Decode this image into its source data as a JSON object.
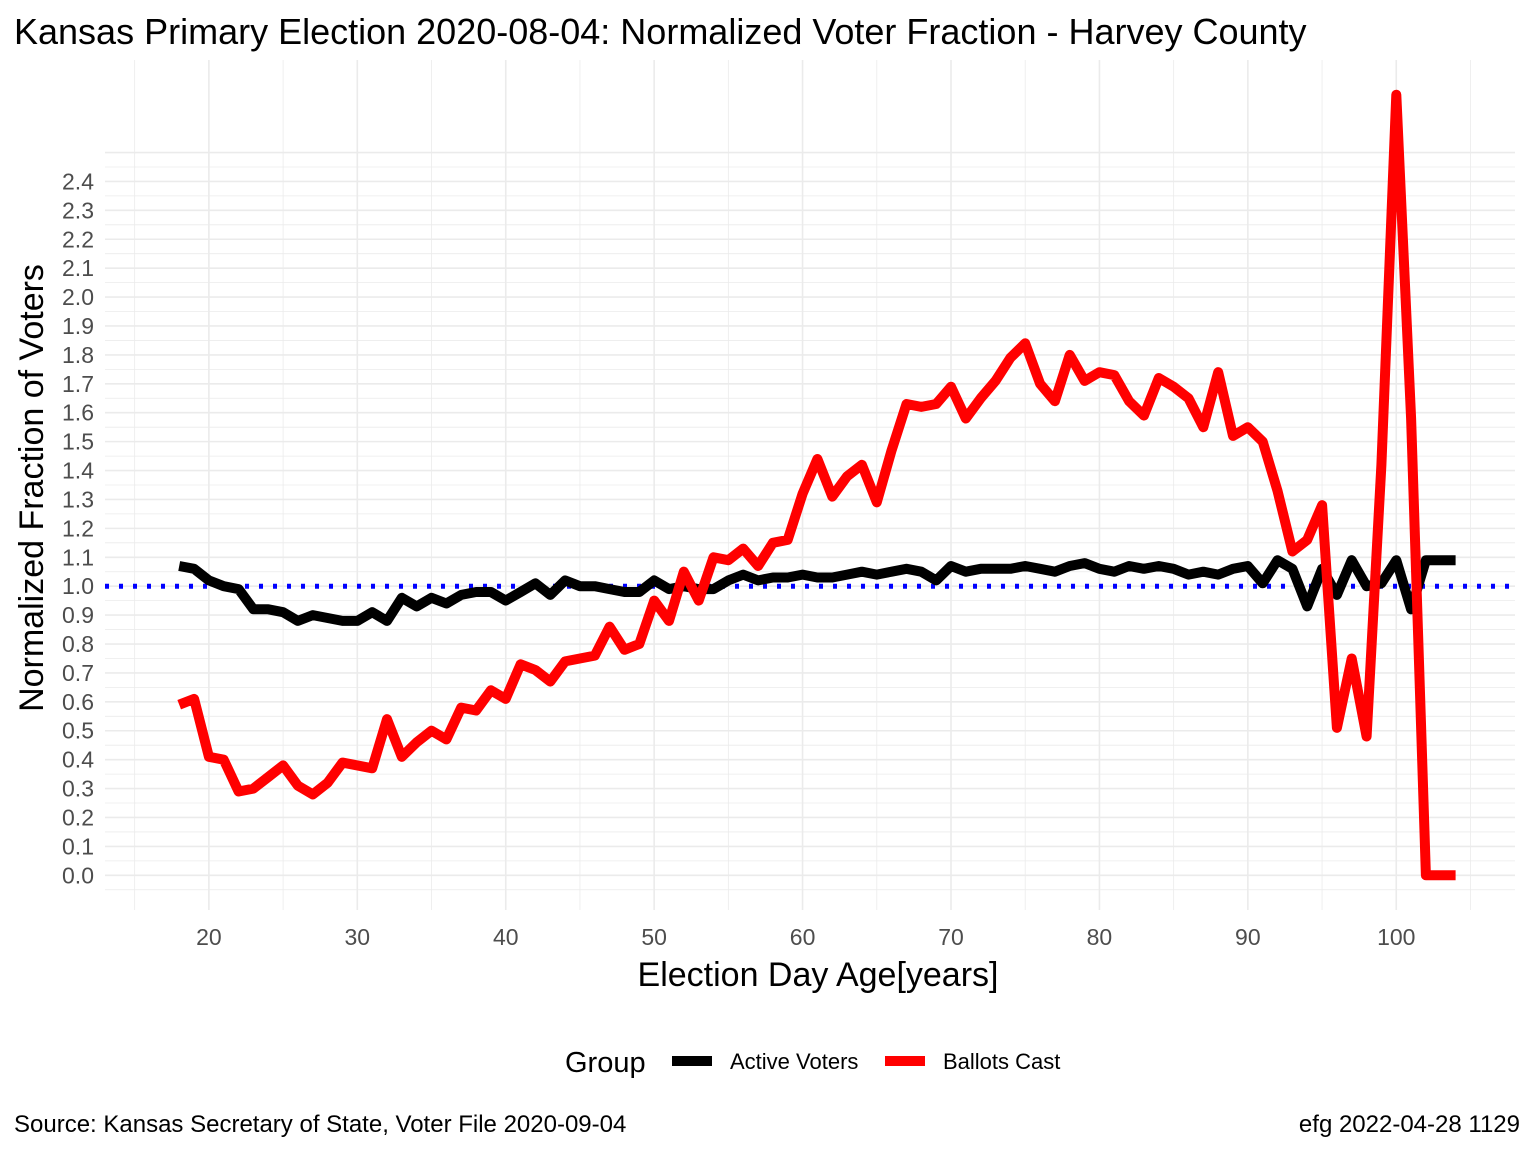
{
  "chart_data": {
    "type": "line",
    "title": "Kansas Primary Election 2020-08-04:  Normalized Voter Fraction - Harvey County",
    "xlabel": "Election Day Age[years]",
    "ylabel": "Normalized Fraction of Voters",
    "xlim": [
      13,
      108
    ],
    "ylim": [
      -0.12,
      2.82
    ],
    "x_ticks": [
      "20",
      "30",
      "40",
      "50",
      "60",
      "70",
      "80",
      "90",
      "100"
    ],
    "y_ticks": [
      "0.0",
      "0.1",
      "0.2",
      "0.3",
      "0.4",
      "0.5",
      "0.6",
      "0.7",
      "0.8",
      "0.9",
      "1.0",
      "1.1",
      "1.2",
      "1.3",
      "1.4",
      "1.5",
      "1.6",
      "1.7",
      "1.8",
      "1.9",
      "2.0",
      "2.1",
      "2.2",
      "2.3",
      "2.4"
    ],
    "reference_line": {
      "y": 1.0,
      "color": "#0000ff",
      "style": "dotted"
    },
    "grid": true,
    "legend": {
      "title": "Group",
      "position": "bottom"
    },
    "x": [
      18,
      19,
      20,
      21,
      22,
      23,
      24,
      25,
      26,
      27,
      28,
      29,
      30,
      31,
      32,
      33,
      34,
      35,
      36,
      37,
      38,
      39,
      40,
      41,
      42,
      43,
      44,
      45,
      46,
      47,
      48,
      49,
      50,
      51,
      52,
      53,
      54,
      55,
      56,
      57,
      58,
      59,
      60,
      61,
      62,
      63,
      64,
      65,
      66,
      67,
      68,
      69,
      70,
      71,
      72,
      73,
      74,
      75,
      76,
      77,
      78,
      79,
      80,
      81,
      82,
      83,
      84,
      85,
      86,
      87,
      88,
      89,
      90,
      91,
      92,
      93,
      94,
      95,
      96,
      97,
      98,
      99,
      100,
      101,
      102,
      103,
      104
    ],
    "series": [
      {
        "name": "Active Voters",
        "color": "#000000",
        "values": [
          1.07,
          1.06,
          1.02,
          1.0,
          0.99,
          0.92,
          0.92,
          0.91,
          0.88,
          0.9,
          0.89,
          0.88,
          0.88,
          0.91,
          0.88,
          0.96,
          0.93,
          0.96,
          0.94,
          0.97,
          0.98,
          0.98,
          0.95,
          0.98,
          1.01,
          0.97,
          1.02,
          1.0,
          1.0,
          0.99,
          0.98,
          0.98,
          1.02,
          0.99,
          1.0,
          0.99,
          0.99,
          1.02,
          1.04,
          1.02,
          1.03,
          1.03,
          1.04,
          1.03,
          1.03,
          1.04,
          1.05,
          1.04,
          1.05,
          1.06,
          1.05,
          1.02,
          1.07,
          1.05,
          1.06,
          1.06,
          1.06,
          1.07,
          1.06,
          1.05,
          1.07,
          1.08,
          1.06,
          1.05,
          1.07,
          1.06,
          1.07,
          1.06,
          1.04,
          1.05,
          1.04,
          1.06,
          1.07,
          1.01,
          1.09,
          1.06,
          0.93,
          1.06,
          0.97,
          1.09,
          1.0,
          1.01,
          1.09,
          0.92,
          1.09,
          1.09,
          1.09
        ]
      },
      {
        "name": "Ballots Cast",
        "color": "#ff0000",
        "values": [
          0.59,
          0.61,
          0.41,
          0.4,
          0.29,
          0.3,
          0.34,
          0.38,
          0.31,
          0.28,
          0.32,
          0.39,
          0.38,
          0.37,
          0.54,
          0.41,
          0.46,
          0.5,
          0.47,
          0.58,
          0.57,
          0.64,
          0.61,
          0.73,
          0.71,
          0.67,
          0.74,
          0.75,
          0.76,
          0.86,
          0.78,
          0.8,
          0.95,
          0.88,
          1.05,
          0.95,
          1.1,
          1.09,
          1.13,
          1.07,
          1.15,
          1.16,
          1.32,
          1.44,
          1.31,
          1.38,
          1.42,
          1.29,
          1.47,
          1.63,
          1.62,
          1.63,
          1.69,
          1.58,
          1.65,
          1.71,
          1.79,
          1.84,
          1.7,
          1.64,
          1.8,
          1.71,
          1.74,
          1.73,
          1.64,
          1.59,
          1.72,
          1.69,
          1.65,
          1.55,
          1.74,
          1.52,
          1.55,
          1.5,
          1.33,
          1.12,
          1.16,
          1.28,
          0.51,
          0.75,
          0.48,
          1.42,
          2.7,
          1.58,
          0.0,
          0.0,
          0.0
        ]
      }
    ]
  },
  "caption_left": "Source:  Kansas Secretary of State, Voter File  2020-09-04",
  "caption_right": "efg 2022-04-28 1129"
}
